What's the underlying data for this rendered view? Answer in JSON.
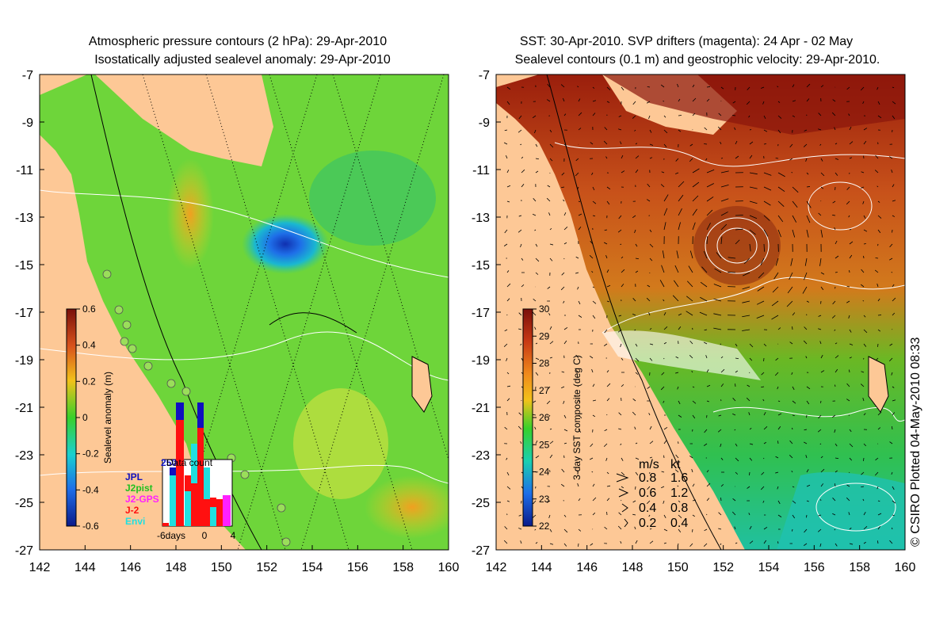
{
  "left_panel": {
    "title_line1": "Atmospheric pressure contours (2 hPa): 29-Apr-2010",
    "title_line2": "Isostatically adjusted sealevel anomaly: 29-Apr-2010",
    "x_ticks": [
      "142",
      "144",
      "146",
      "148",
      "150",
      "152",
      "154",
      "156",
      "158",
      "160"
    ],
    "y_ticks": [
      "-7",
      "-9",
      "-11",
      "-13",
      "-15",
      "-17",
      "-19",
      "-21",
      "-23",
      "-25",
      "-27"
    ],
    "colorbar": {
      "label": "Sealevel anomaly (m)",
      "ticks": [
        "0.6",
        "0.4",
        "0.2",
        "0",
        "-0.2",
        "-0.4",
        "-0.6"
      ]
    },
    "data_count": {
      "title": "Data count",
      "ymax_label": "250",
      "x_labels": [
        "-6days",
        "0",
        "4"
      ],
      "legend": [
        {
          "name": "JPL",
          "color": "#1010c0"
        },
        {
          "name": "J2pist",
          "color": "#20c020"
        },
        {
          "name": "J2-GPS",
          "color": "#ff20ff"
        },
        {
          "name": "J-2",
          "color": "#ff1010"
        },
        {
          "name": "Envi",
          "color": "#20e0e0"
        }
      ]
    }
  },
  "right_panel": {
    "title_line1": "SST: 30-Apr-2010. SVP drifters (magenta): 24 Apr - 02 May",
    "title_line2": "Sealevel contours (0.1 m) and geostrophic velocity: 29-Apr-2010.",
    "x_ticks": [
      "142",
      "144",
      "146",
      "148",
      "150",
      "152",
      "154",
      "156",
      "158",
      "160"
    ],
    "y_ticks": [
      "-7",
      "-9",
      "-11",
      "-13",
      "-15",
      "-17",
      "-19",
      "-21",
      "-23",
      "-25",
      "-27"
    ],
    "colorbar": {
      "label": "3-day SST composite (deg C)",
      "ticks": [
        "30",
        "29",
        "28",
        "27",
        "26",
        "25",
        "24",
        "23",
        "22"
      ]
    },
    "speed_legend": {
      "header_ms": "m/s",
      "header_kt": "kt",
      "rows": [
        {
          "ms": "0.8",
          "kt": "1.6"
        },
        {
          "ms": "0.6",
          "kt": "1.2"
        },
        {
          "ms": "0.4",
          "kt": "0.8"
        },
        {
          "ms": "0.2",
          "kt": "0.4"
        }
      ]
    }
  },
  "credit": "© CSIRO Plotted 04-May-2010 08:33",
  "colors": {
    "land": "#fdc896",
    "sealevel_low": "#1a2ea8",
    "sealevel_zero": "#3ad12a",
    "sealevel_high": "#8c1a10",
    "sst_warm": "#8c1a10",
    "sst_cool": "#1fc0a8"
  }
}
